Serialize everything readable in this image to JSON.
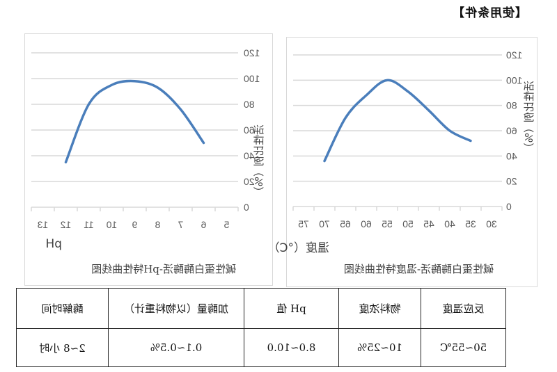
{
  "section_title": "【使用条件】",
  "charts": {
    "temperature": {
      "title": "碱性蛋白酶酶活-温度特性曲线图",
      "xlabel": "温度（°C）",
      "ylabel": "活性比例（%）"
    },
    "ph": {
      "title": "碱性蛋白酶酶活-pH特性曲线图",
      "xlabel": "pH",
      "ylabel": "活性比例（%）"
    }
  },
  "chart_data": [
    {
      "type": "line",
      "title": "碱性蛋白酶酶活-温度特性曲线图",
      "xlabel": "温度（°C）",
      "ylabel": "活性比例（%）",
      "categories": [
        "30",
        "35",
        "40",
        "45",
        "50",
        "55",
        "60",
        "65",
        "70",
        "75"
      ],
      "series": [
        {
          "name": "活性比例",
          "color": "#4a7ebb",
          "values": [
            null,
            52,
            60,
            76,
            91,
            100,
            88,
            70,
            36,
            null
          ]
        }
      ],
      "ylim": [
        0,
        120
      ],
      "yticks": [
        0,
        20,
        40,
        60,
        80,
        100,
        120
      ],
      "grid": true,
      "legend": "none"
    },
    {
      "type": "line",
      "title": "碱性蛋白酶酶活-pH特性曲线图",
      "xlabel": "pH",
      "ylabel": "活性比例（%）",
      "categories": [
        "5",
        "6",
        "7",
        "8",
        "9",
        "10",
        "11",
        "12",
        "13"
      ],
      "series": [
        {
          "name": "活性比例",
          "color": "#4a7ebb",
          "values": [
            null,
            50,
            76,
            93,
            98,
            95,
            80,
            35,
            null
          ]
        }
      ],
      "ylim": [
        0,
        120
      ],
      "yticks": [
        0,
        20,
        40,
        60,
        80,
        100,
        120
      ],
      "grid": true,
      "legend": "none"
    }
  ],
  "table": {
    "headers": [
      "反应温度",
      "物料浓度",
      "pH 值",
      "加酶量（以物料重计）",
      "酶解时间"
    ],
    "values": [
      "50~55℃",
      "10~25%",
      "8.0~10.0",
      "0.1~0.5%",
      "2~8 小时"
    ]
  }
}
